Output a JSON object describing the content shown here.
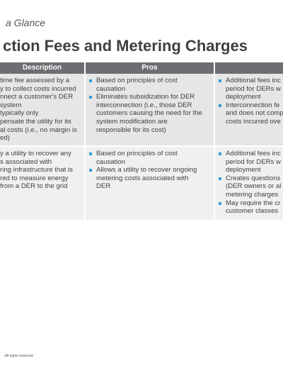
{
  "header": {
    "subtitle": "a Glance",
    "title": "ction Fees and Metering Charges"
  },
  "table": {
    "headers": [
      "Description",
      "Pros"
    ],
    "rows": [
      {
        "description": [
          "time fee assessed by a",
          "y to collect costs incurred",
          "nnect a customer's DER",
          "system",
          "typically only",
          "pensate the utility for its",
          "al costs (i.e., no margin is",
          "ed)"
        ],
        "pros": [
          [
            "Based on principles of cost",
            "causation"
          ],
          [
            "Eliminates subsidization for DER",
            "interconnection (i.e., those DER",
            "customers causing the need for the",
            "system modification are",
            "responsible for its cost)"
          ]
        ],
        "cons": [
          [
            "Additional fees inc",
            "period for DERs w",
            "deployment"
          ],
          [
            "Interconnection fe",
            "and does not comp",
            "costs incurred ove"
          ]
        ]
      },
      {
        "description": [
          "y a utility to recover any",
          "s associated with",
          "ring infrastructure that is",
          "red to measure energy",
          "from a DER to the grid"
        ],
        "pros": [
          [
            "Based on principles of cost",
            "causation"
          ],
          [
            "Allows a utility to recover ongoing",
            "metering costs associated with",
            "DER"
          ]
        ],
        "cons": [
          [
            "Additional fees inc",
            "period for DERs w",
            "deployment"
          ],
          [
            "Creates questions",
            "(DER owners or al",
            "metering charges"
          ],
          [
            "May require the cr",
            "customer classes"
          ]
        ]
      }
    ]
  },
  "footer": ". All rights reserved."
}
